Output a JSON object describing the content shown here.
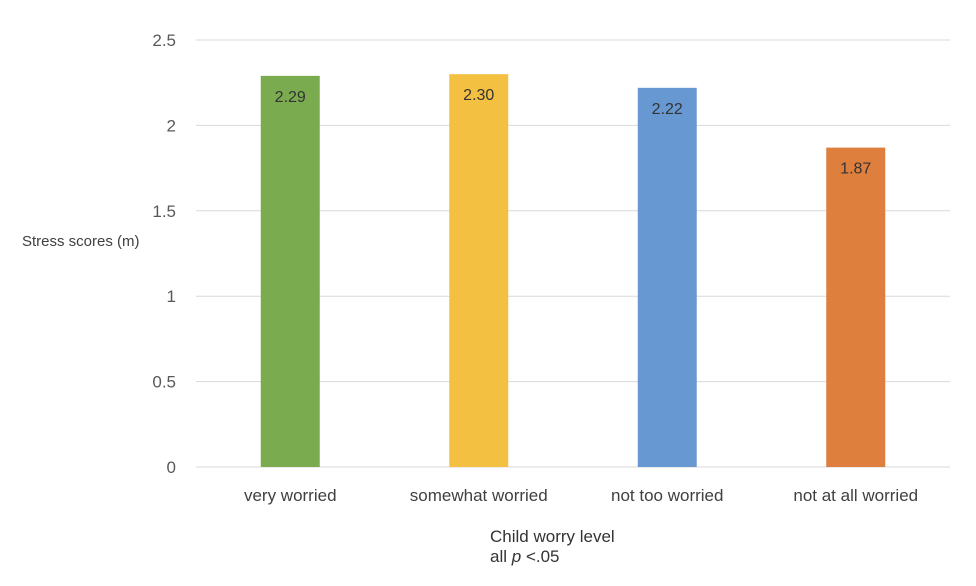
{
  "chart_data": {
    "type": "bar",
    "categories": [
      "very worried",
      "somewhat worried",
      "not too worried",
      "not at all worried"
    ],
    "values": [
      2.29,
      2.3,
      2.22,
      1.87
    ],
    "value_labels": [
      "2.29",
      "2.30",
      "2.22",
      "1.87"
    ],
    "colors": [
      "#7AAB4E",
      "#F4C042",
      "#6798D1",
      "#DF7F3E"
    ],
    "ylabel": "Stress scores (m)",
    "xlabel": "Child worry level",
    "note_prefix": "all",
    "note_italic": "p",
    "note_suffix": "<.05",
    "ylim": [
      0,
      2.5
    ],
    "yticks": [
      "0",
      "0.5",
      "1",
      "1.5",
      "2",
      "2.5"
    ],
    "ytick_values": [
      0,
      0.5,
      1,
      1.5,
      2,
      2.5
    ],
    "grid": true
  }
}
